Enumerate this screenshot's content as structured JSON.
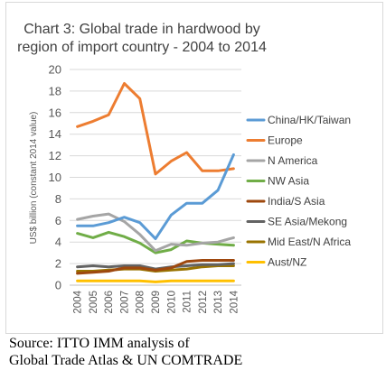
{
  "chart_data": {
    "type": "line",
    "title_lines": [
      "Chart 3: Global trade in hardwood by",
      "region of import country - 2004 to 2014"
    ],
    "ylabel": "US$ billion (constant 2014 value)",
    "xlabel": "",
    "ylim": [
      0,
      20
    ],
    "yticks": [
      0,
      2,
      4,
      6,
      8,
      10,
      12,
      14,
      16,
      18,
      20
    ],
    "categories": [
      "2004",
      "2005",
      "2006",
      "2007",
      "2008",
      "2009",
      "2010",
      "2011",
      "2012",
      "2013",
      "2014"
    ],
    "grid": true,
    "legend_position": "right",
    "series": [
      {
        "name": "China/HK/Taiwan",
        "color": "#5b9bd5",
        "values": [
          5.5,
          5.5,
          5.8,
          6.3,
          5.8,
          4.3,
          6.5,
          7.6,
          7.6,
          8.8,
          12.1
        ]
      },
      {
        "name": "Europe",
        "color": "#ed7d31",
        "values": [
          14.7,
          15.2,
          15.8,
          18.7,
          17.3,
          10.3,
          11.5,
          12.3,
          10.6,
          10.6,
          10.8
        ]
      },
      {
        "name": "N America",
        "color": "#a5a5a5",
        "values": [
          6.1,
          6.4,
          6.6,
          5.9,
          4.7,
          3.2,
          3.8,
          3.7,
          3.9,
          4.0,
          4.4
        ]
      },
      {
        "name": "NW Asia",
        "color": "#70ad47",
        "values": [
          4.8,
          4.4,
          4.9,
          4.5,
          3.9,
          3.0,
          3.3,
          4.1,
          3.9,
          3.8,
          3.7
        ]
      },
      {
        "name": "India/S Asia",
        "color": "#9e480e",
        "values": [
          1.1,
          1.2,
          1.3,
          1.6,
          1.6,
          1.4,
          1.6,
          2.2,
          2.3,
          2.3,
          2.3
        ]
      },
      {
        "name": "SE Asia/Mekong",
        "color": "#636363",
        "values": [
          1.7,
          1.8,
          1.7,
          1.8,
          1.8,
          1.5,
          1.7,
          1.8,
          1.9,
          1.9,
          2.0
        ]
      },
      {
        "name": "Mid East/N Africa",
        "color": "#997300",
        "values": [
          1.3,
          1.3,
          1.4,
          1.5,
          1.5,
          1.3,
          1.4,
          1.5,
          1.7,
          1.8,
          1.8
        ]
      },
      {
        "name": "Aust/NZ",
        "color": "#ffc000",
        "values": [
          0.4,
          0.4,
          0.4,
          0.4,
          0.4,
          0.3,
          0.4,
          0.4,
          0.4,
          0.4,
          0.4
        ]
      }
    ]
  },
  "source": {
    "line1": "Source: ITTO IMM analysis of",
    "line2": "Global Trade Atlas & UN COMTRADE"
  }
}
